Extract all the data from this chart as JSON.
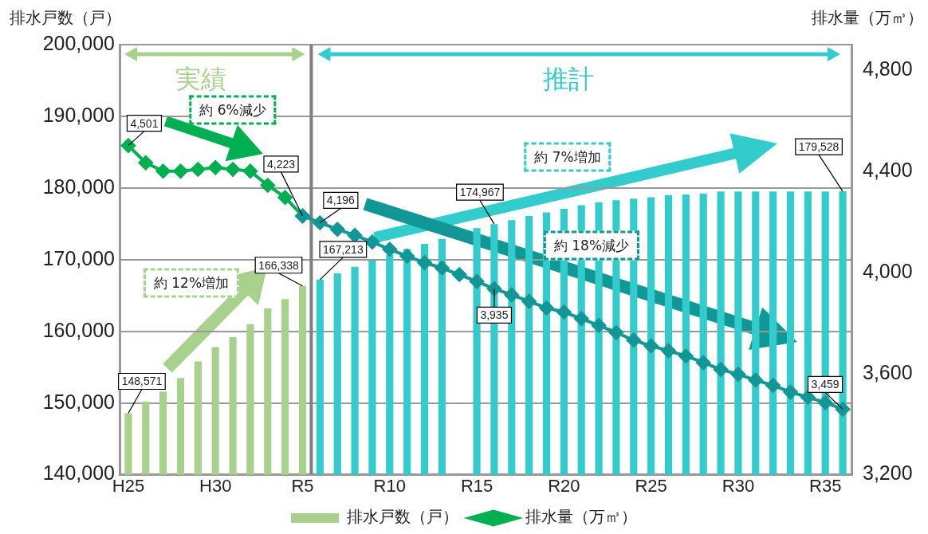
{
  "chart_data": {
    "type": "bar",
    "categories": [
      "H25",
      null,
      null,
      null,
      null,
      "H30",
      null,
      null,
      null,
      null,
      "R5",
      null,
      null,
      null,
      null,
      "R10",
      null,
      null,
      null,
      null,
      "R15",
      null,
      null,
      null,
      null,
      "R20",
      null,
      null,
      null,
      null,
      "R25",
      null,
      null,
      null,
      null,
      "R30",
      null,
      null,
      null,
      null,
      "R35",
      null
    ],
    "ylabel": "排水戸数（戸）",
    "y2label": "排水量（万㎥）",
    "ylim": [
      140000,
      200000
    ],
    "yticks": [
      {
        "value": 140000,
        "label": "140,000"
      },
      {
        "value": 150000,
        "label": "150,000"
      },
      {
        "value": 160000,
        "label": "160,000"
      },
      {
        "value": 170000,
        "label": "170,000"
      },
      {
        "value": 180000,
        "label": "180,000"
      },
      {
        "value": 190000,
        "label": "190,000"
      },
      {
        "value": 200000,
        "label": "200,000"
      }
    ],
    "y2lim": [
      3200,
      4900
    ],
    "y2ticks": [
      {
        "value": 3200,
        "label": "3,200"
      },
      {
        "value": 3600,
        "label": "3,600"
      },
      {
        "value": 4000,
        "label": "4,000"
      },
      {
        "value": 4400,
        "label": "4,400"
      },
      {
        "value": 4800,
        "label": "4,800"
      }
    ],
    "grid": "y",
    "legend": "bottom",
    "marker": "diamond",
    "line_style": "solid",
    "annotations": [
      "実績",
      "推計",
      "約 6%減少",
      "約 12%増加",
      "約 7%増加",
      "約 18%減少"
    ],
    "series": [
      {
        "name": "排水戸数（戸）",
        "color": "#a9d18e",
        "colors": [
          "#a9d18e",
          "#a9d18e",
          "#a9d18e",
          "#a9d18e",
          "#a9d18e",
          "#a9d18e",
          "#a9d18e",
          "#a9d18e",
          "#a9d18e",
          "#a9d18e",
          "#a9d18e",
          "#33cccc",
          "#33cccc",
          "#33cccc",
          "#33cccc",
          "#33cccc",
          "#33cccc",
          "#33cccc",
          "#33cccc",
          "#33cccc",
          "#33cccc",
          "#33cccc",
          "#33cccc",
          "#33cccc",
          "#33cccc",
          "#33cccc",
          "#33cccc",
          "#33cccc",
          "#33cccc",
          "#33cccc",
          "#33cccc",
          "#33cccc",
          "#33cccc",
          "#33cccc",
          "#33cccc",
          "#33cccc",
          "#33cccc",
          "#33cccc",
          "#33cccc",
          "#33cccc",
          "#33cccc",
          "#33cccc"
        ],
        "values": [
          148571,
          150200,
          151600,
          153500,
          155800,
          157800,
          159200,
          161000,
          163200,
          164500,
          166338,
          167213,
          168100,
          169000,
          169900,
          170700,
          171500,
          172200,
          172900,
          null,
          174400,
          174967,
          175500,
          176100,
          176600,
          177100,
          177600,
          178000,
          178300,
          178500,
          178700,
          179000,
          179100,
          179200,
          179500,
          179500,
          179500,
          179500,
          179500,
          179500,
          179500,
          179528
        ],
        "value_labels": [
          "148,571",
          null,
          null,
          null,
          null,
          null,
          null,
          null,
          null,
          null,
          "166,338",
          "167,213",
          null,
          null,
          null,
          null,
          null,
          null,
          null,
          null,
          null,
          "174,967",
          null,
          null,
          null,
          null,
          null,
          null,
          null,
          null,
          null,
          null,
          null,
          null,
          null,
          null,
          null,
          null,
          null,
          null,
          null,
          "179,528"
        ]
      },
      {
        "name": "排水量（万㎥）",
        "type": "line",
        "axis": "y2",
        "color": "#00b050",
        "values": [
          4501,
          4433,
          4400,
          4400,
          4407,
          4414,
          4407,
          4400,
          4344,
          4296,
          4223,
          null,
          null,
          null,
          null,
          null,
          null,
          null,
          null,
          null,
          null,
          null,
          null,
          null,
          null,
          null,
          null,
          null,
          null,
          null,
          null,
          null,
          null,
          null,
          null,
          null,
          null,
          null,
          null,
          null,
          null,
          null
        ],
        "value_labels": [
          "4,501",
          null,
          null,
          null,
          null,
          null,
          null,
          null,
          null,
          null,
          "4,223",
          null,
          null,
          null,
          null,
          null,
          null,
          null,
          null,
          null,
          null,
          null,
          null,
          null,
          null,
          null,
          null,
          null,
          null,
          null,
          null,
          null,
          null,
          null,
          null,
          null,
          null,
          null,
          null,
          null,
          null,
          null
        ]
      },
      {
        "type": "line",
        "axis": "y2",
        "color": "#129797",
        "values": [
          null,
          null,
          null,
          null,
          null,
          null,
          null,
          null,
          null,
          null,
          4223,
          4196,
          4170,
          4146,
          4120,
          4091,
          4064,
          4038,
          4017,
          3991,
          3964,
          3935,
          3911,
          3885,
          3859,
          3843,
          3817,
          3790,
          3762,
          3732,
          3709,
          3690,
          3669,
          3643,
          3616,
          3597,
          3574,
          3553,
          3527,
          3506,
          3485,
          3459
        ],
        "value_labels": [
          null,
          null,
          null,
          null,
          null,
          null,
          null,
          null,
          null,
          null,
          null,
          "4,196",
          null,
          null,
          null,
          null,
          null,
          null,
          null,
          null,
          null,
          "3,935",
          null,
          null,
          null,
          null,
          null,
          null,
          null,
          null,
          null,
          null,
          null,
          null,
          null,
          null,
          null,
          null,
          null,
          null,
          null,
          "3,459"
        ]
      }
    ]
  }
}
